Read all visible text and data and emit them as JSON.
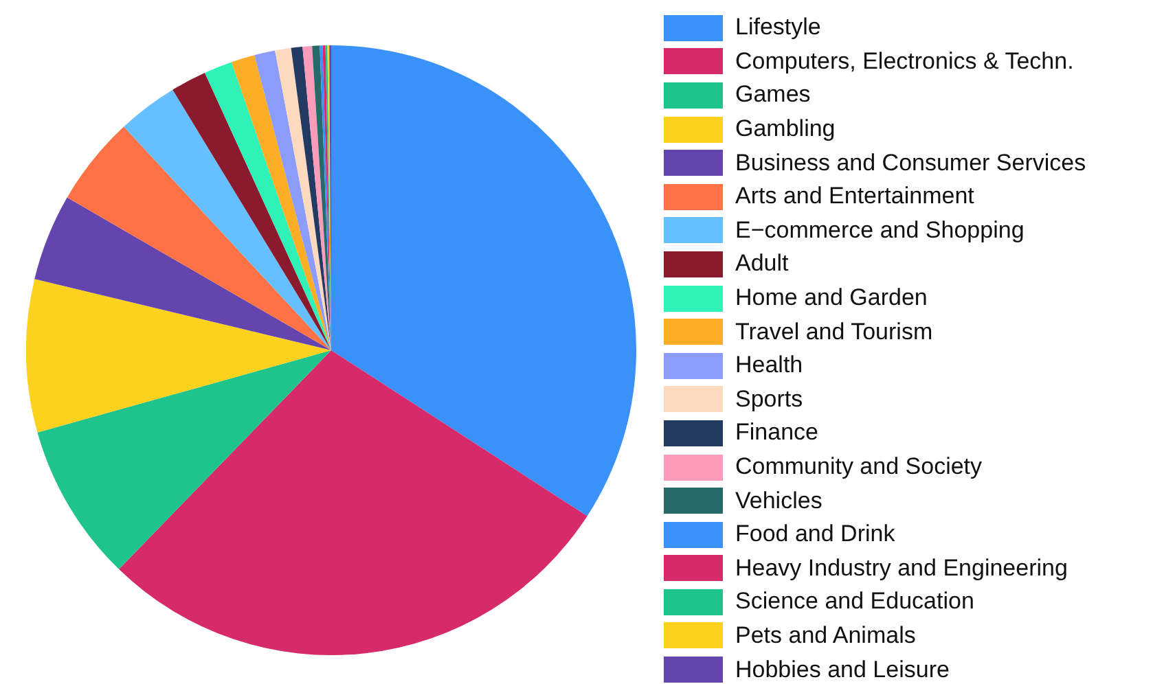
{
  "chart_data": {
    "type": "pie",
    "legend": "right",
    "categories": [
      "Lifestyle",
      "Computers, Electronics & Techn.",
      "Games",
      "Gambling",
      "Business and Consumer Services",
      "Arts and Entertainment",
      "E−commerce and Shopping",
      "Adult",
      "Home and Garden",
      "Travel and Tourism",
      "Health",
      "Sports",
      "Finance",
      "Community and Society",
      "Vehicles",
      "Food and Drink",
      "Heavy Industry and Engineering",
      "Science and Education",
      "Pets and Animals",
      "Hobbies and Leisure"
    ],
    "values": [
      34.15,
      28.1,
      8.4,
      8.1,
      4.6,
      4.75,
      3.2,
      1.9,
      1.5,
      1.25,
      1.1,
      0.85,
      0.6,
      0.5,
      0.4,
      0.15,
      0.15,
      0.1,
      0.1,
      0.1
    ],
    "colors": [
      "#3a91f7",
      "#d62a6a",
      "#1fc48c",
      "#fdd21f",
      "#6345ad",
      "#fe7245",
      "#66bfff",
      "#8b1a2e",
      "#2ff2b9",
      "#fdae26",
      "#8c9cfb",
      "#fdd9bd",
      "#233a63",
      "#fa9cba",
      "#266a6a",
      "#3a91f7",
      "#d62a6a",
      "#1fc48c",
      "#fdd21f",
      "#6345ad"
    ]
  }
}
